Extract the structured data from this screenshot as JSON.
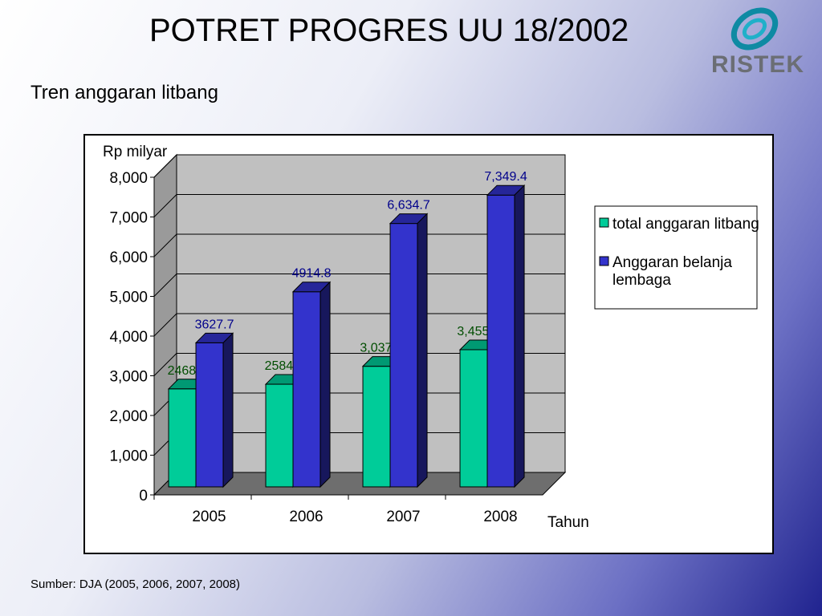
{
  "slide": {
    "title": "POTRET PROGRES UU 18/2002",
    "subtitle": "Tren anggaran litbang",
    "logo_text": "RISTEK",
    "source": "Sumber: DJA (2005, 2006, 2007, 2008)"
  },
  "chart_data": {
    "type": "bar",
    "title": "",
    "ylabel": "Rp milyar",
    "xlabel": "Tahun",
    "categories": [
      "2005",
      "2006",
      "2007",
      "2008"
    ],
    "ylim": [
      0,
      8000
    ],
    "yticks": [
      0,
      1000,
      2000,
      3000,
      4000,
      5000,
      6000,
      7000,
      8000
    ],
    "ytick_labels": [
      "0",
      "1,000",
      "2,000",
      "3,000",
      "4,000",
      "5,000",
      "6,000",
      "7,000",
      "8,000"
    ],
    "legend_position": "right",
    "three_d": true,
    "grid": true,
    "series": [
      {
        "name": "total anggaran litbang",
        "values": [
          2468.5,
          2584.6,
          3037.1,
          3455.3
        ],
        "labels": [
          "2468.5",
          "2584.6",
          "3,037.1",
          "3,455.3"
        ],
        "color": "#00cc99",
        "label_color": "#004d00"
      },
      {
        "name": "Anggaran belanja lembaga",
        "values": [
          3627.7,
          4914.8,
          6634.7,
          7349.4
        ],
        "labels": [
          "3627.7",
          "4914.8",
          "6,634.7",
          "7,349.4"
        ],
        "color": "#3333cc",
        "label_color": "#00008b"
      }
    ]
  }
}
